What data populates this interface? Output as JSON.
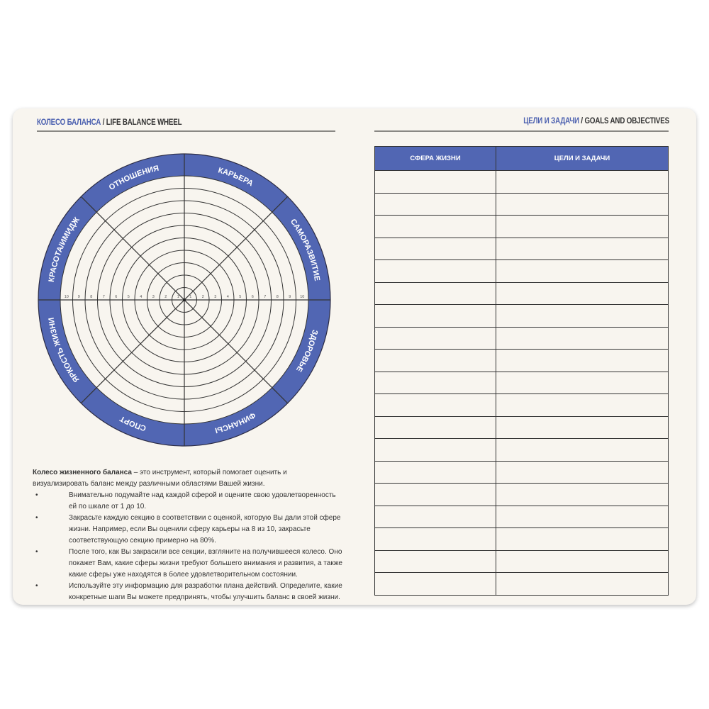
{
  "left": {
    "title_ru": "КОЛЕСО БАЛАНСА",
    "title_en": " / LIFE BALANCE WHEEL",
    "wheel": {
      "ring_color": "#5166b3",
      "sectors": [
        "ЗДОРОВЬЕ",
        "ФИНАНСЫ",
        "СПОРТ",
        "ЯРКОСТЬ ЖИЗНИ",
        "КРАСОТА/ИМИДЖ",
        "ОТНОШЕНИЯ",
        "КАРЬЕРА",
        "САМОРАЗВИТИЕ"
      ],
      "scale": [
        "1",
        "2",
        "3",
        "4",
        "5",
        "6",
        "7",
        "8",
        "9",
        "10"
      ]
    },
    "description": {
      "lead_bold": "Колесо жизненного баланса",
      "lead_rest": " – это инструмент, который помогает оценить и визуализировать баланс между различными областями Вашей жизни.",
      "bullets": [
        "Внимательно подумайте над каждой сферой и оцените свою удовлетворенность ей по шкале от 1 до 10.",
        "Закрасьте каждую секцию в соответствии с оценкой, которую Вы дали этой сфере жизни. Например, если Вы оценили сферу карьеры на 8 из 10, закрасьте соответствующую секцию примерно на 80%.",
        "После того, как Вы закрасили все секции, взгляните на получившееся колесо. Оно покажет Вам, какие сферы жизни требуют большего внимания и развития, а также какие сферы уже находятся в более удовлетворительном состоянии.",
        "Используйте эту информацию для разработки плана действий. Определите, какие конкретные шаги Вы можете предпринять, чтобы улучшить баланс в своей жизни."
      ]
    }
  },
  "right": {
    "title_ru": "ЦЕЛИ И ЗАДАЧИ",
    "title_en": " / GOALS AND OBJECTIVES",
    "table": {
      "headers": [
        "СФЕРА ЖИЗНИ",
        "ЦЕЛИ И ЗАДАЧИ"
      ],
      "empty_rows": 19
    }
  }
}
